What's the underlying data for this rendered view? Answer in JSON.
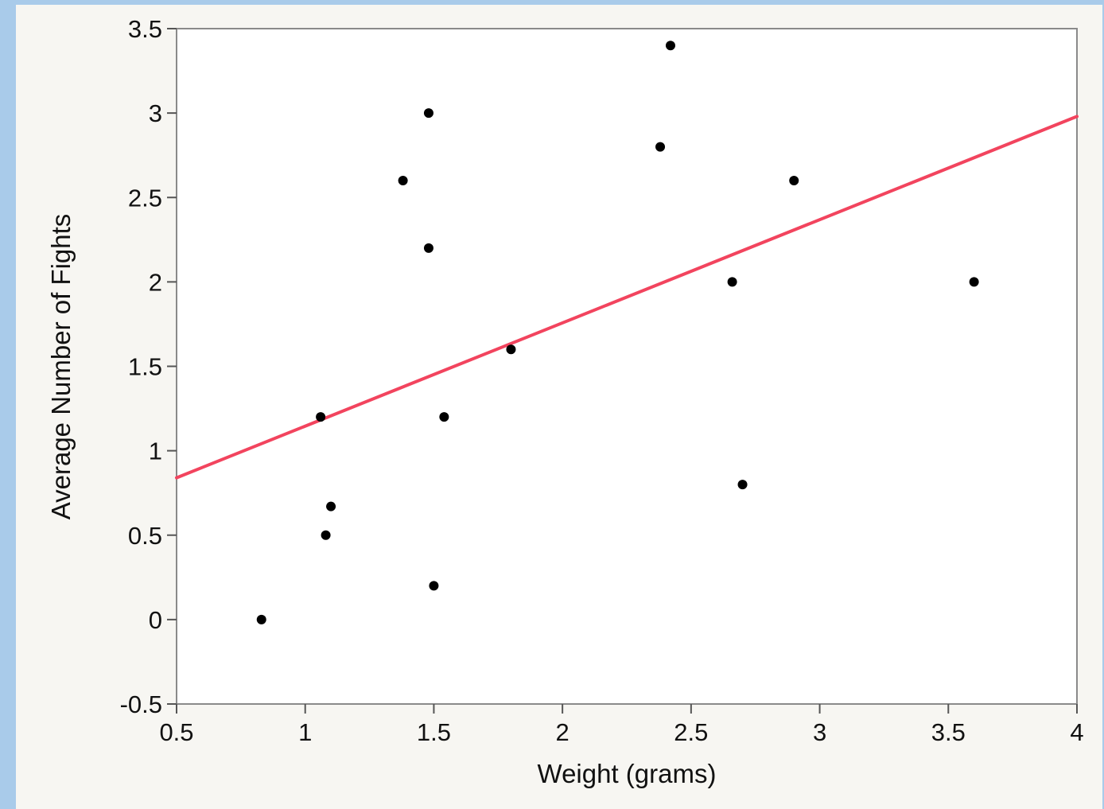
{
  "colors": {
    "background": "#a9cbea",
    "panel": "#f7f6f2",
    "plot": "#ffffff",
    "points": "#000000",
    "fit_line": "#f2445e"
  },
  "chart_data": {
    "type": "scatter",
    "xlabel": "Weight (grams)",
    "ylabel": "Average Number of Fights",
    "xlim": [
      0.5,
      4
    ],
    "ylim": [
      -0.5,
      3.5
    ],
    "xticks": [
      "0.5",
      "1",
      "1.5",
      "2",
      "2.5",
      "3",
      "3.5",
      "4"
    ],
    "yticks": [
      "-0.5",
      "0",
      "0.5",
      "1",
      "1.5",
      "2",
      "2.5",
      "3",
      "3.5"
    ],
    "grid": false,
    "series": [
      {
        "points": [
          {
            "x": 0.83,
            "y": 0.0
          },
          {
            "x": 1.06,
            "y": 1.2
          },
          {
            "x": 1.08,
            "y": 0.5
          },
          {
            "x": 1.1,
            "y": 0.67
          },
          {
            "x": 1.38,
            "y": 2.6
          },
          {
            "x": 1.48,
            "y": 3.0
          },
          {
            "x": 1.48,
            "y": 2.2
          },
          {
            "x": 1.5,
            "y": 0.2
          },
          {
            "x": 1.54,
            "y": 1.2
          },
          {
            "x": 1.8,
            "y": 1.6
          },
          {
            "x": 2.38,
            "y": 2.8
          },
          {
            "x": 2.42,
            "y": 3.4
          },
          {
            "x": 2.66,
            "y": 2.0
          },
          {
            "x": 2.7,
            "y": 0.8
          },
          {
            "x": 2.9,
            "y": 2.6
          },
          {
            "x": 3.6,
            "y": 2.0
          }
        ]
      }
    ],
    "fit_line": {
      "x": [
        0.5,
        4.0
      ],
      "y": [
        0.84,
        2.98
      ]
    }
  }
}
